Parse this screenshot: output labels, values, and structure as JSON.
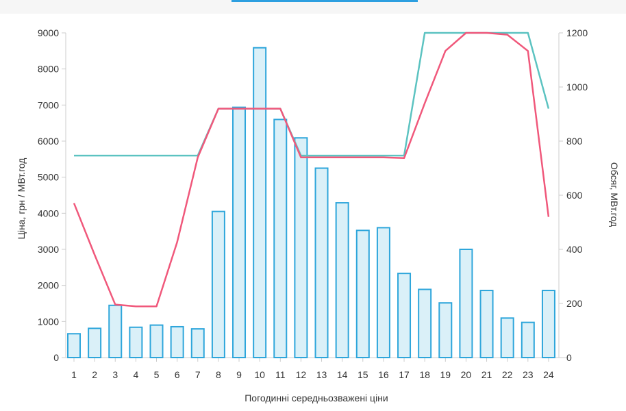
{
  "top_tab": {
    "accent_color": "#2d9fe0"
  },
  "colors": {
    "bar_fill": "#daf0f8",
    "bar_stroke": "#2ea6db",
    "teal_line": "#5cc3c1",
    "red_line": "#f0587b",
    "axis": "#cccccc",
    "grid": "#e6e6e6"
  },
  "chart_data": {
    "type": "bar",
    "title": "",
    "xlabel": "Погодинні середньозважені ціни",
    "ylabel": "Ціна, грн / МВт.год",
    "y2label": "Обсяг, МВт.год",
    "categories": [
      "1",
      "2",
      "3",
      "4",
      "5",
      "6",
      "7",
      "8",
      "9",
      "10",
      "11",
      "12",
      "13",
      "14",
      "15",
      "16",
      "17",
      "18",
      "19",
      "20",
      "21",
      "22",
      "23",
      "24"
    ],
    "ylim": [
      0,
      9000
    ],
    "yticks": [
      0,
      1000,
      2000,
      3000,
      4000,
      5000,
      6000,
      7000,
      8000,
      9000
    ],
    "y2lim": [
      0,
      1200
    ],
    "y2ticks": [
      0,
      200,
      400,
      600,
      800,
      1000,
      1200
    ],
    "grid": false,
    "series": [
      {
        "kind": "bar",
        "axis": "right",
        "values": [
          88,
          108,
          193,
          112,
          120,
          114,
          106,
          540,
          925,
          1145,
          880,
          812,
          700,
          572,
          470,
          480,
          311,
          252,
          202,
          400,
          248,
          146,
          130,
          248
        ]
      },
      {
        "kind": "line",
        "axis": "left",
        "color": "teal",
        "values": [
          5600,
          5600,
          5600,
          5600,
          5600,
          5600,
          5600,
          6900,
          6900,
          6900,
          6900,
          5600,
          5600,
          5600,
          5600,
          5600,
          5600,
          9000,
          9000,
          9000,
          9000,
          9000,
          9000,
          6900
        ]
      },
      {
        "kind": "line",
        "axis": "left",
        "color": "red",
        "values": [
          4280,
          2850,
          1470,
          1420,
          1420,
          3200,
          5550,
          6900,
          6900,
          6900,
          6900,
          5550,
          5550,
          5550,
          5550,
          5550,
          5530,
          7050,
          8500,
          9000,
          9000,
          8950,
          8500,
          3900
        ]
      }
    ]
  }
}
